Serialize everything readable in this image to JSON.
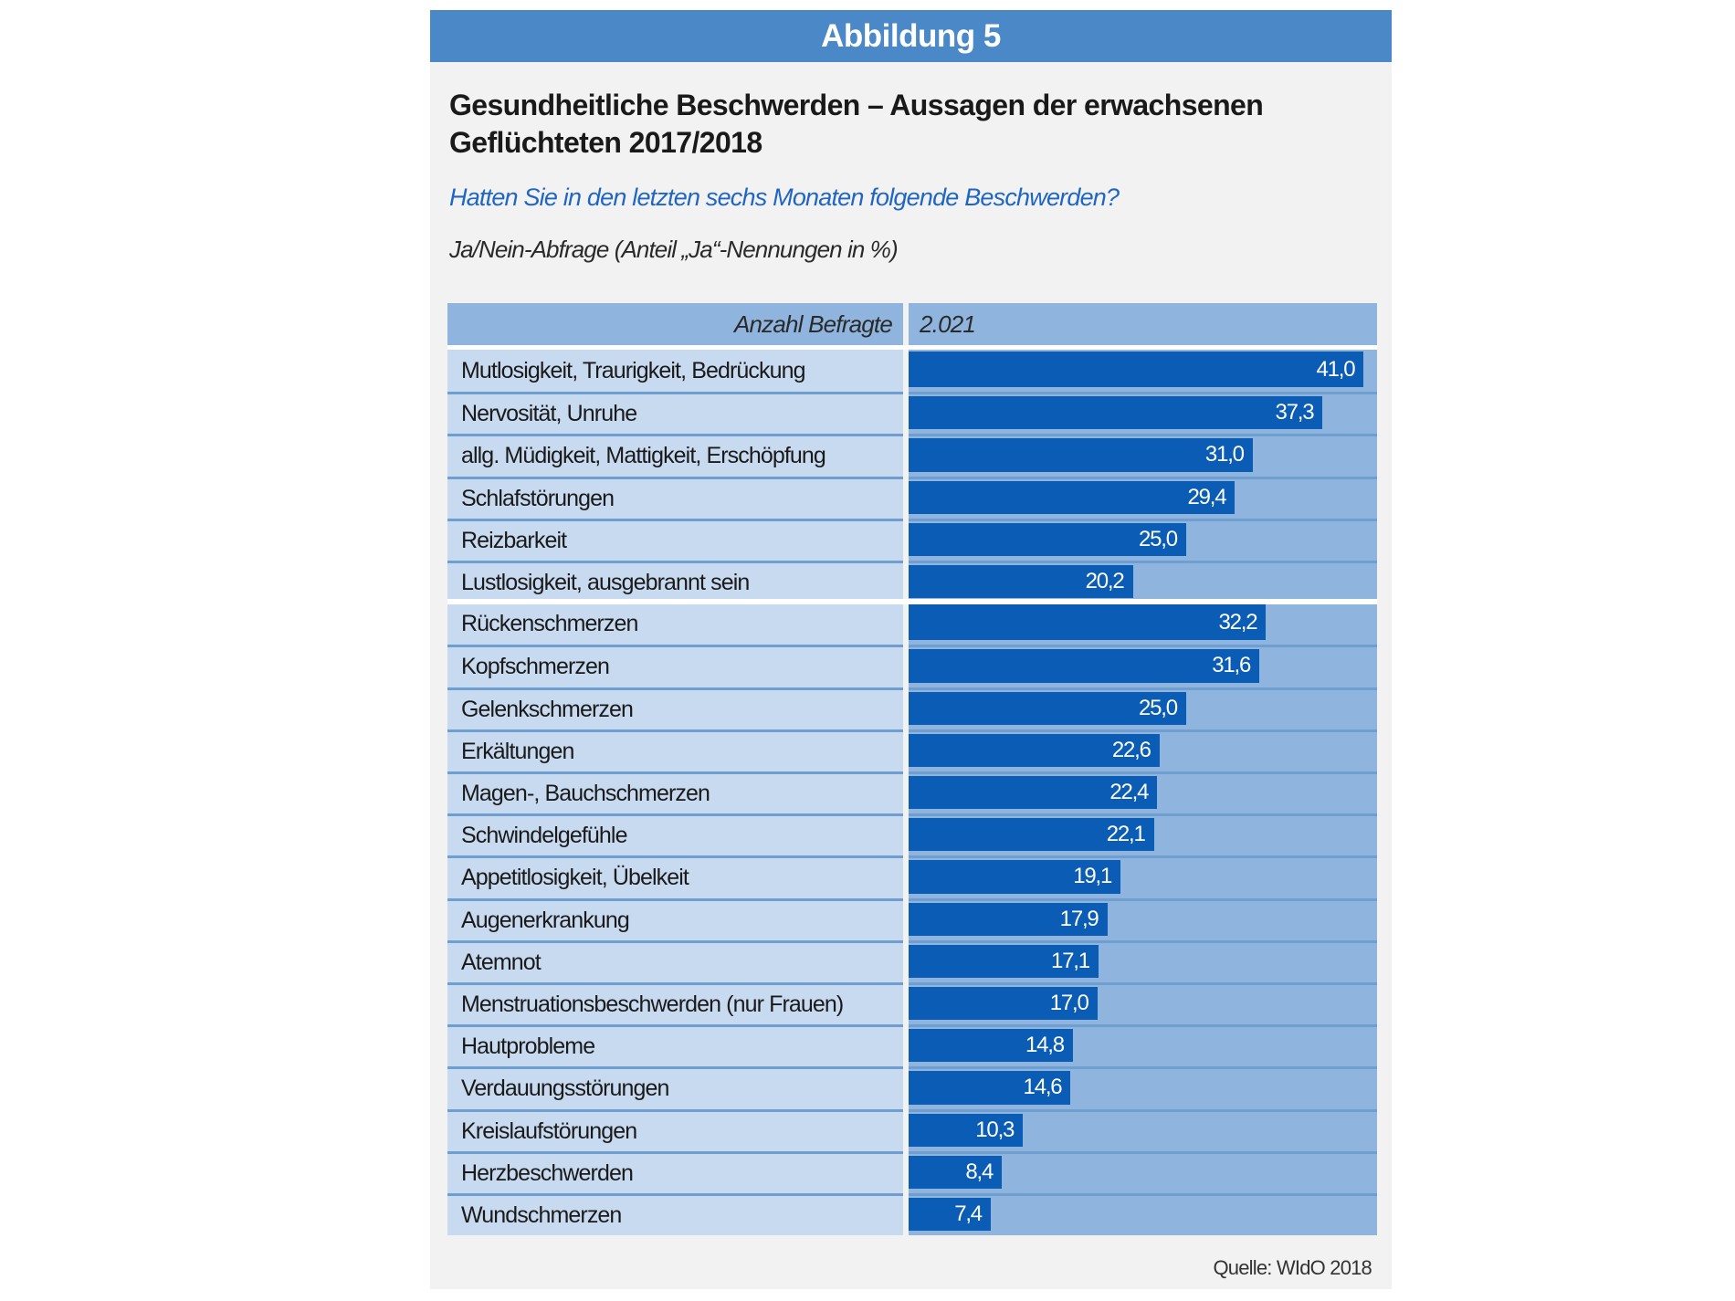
{
  "figure": {
    "header": "Abbildung 5",
    "title_line1": "Gesundheitliche Beschwerden – Aussagen der erwachsenen",
    "title_line2": "Geflüchteten 2017/2018",
    "question": "Hatten Sie in den letzten sechs Monaten folgende Beschwerden?",
    "note": "Ja/Nein-Abfrage (Anteil „Ja“-Nennungen in %)",
    "respondents_label": "Anzahl Befragte",
    "respondents_value": "2.021",
    "source": "Quelle: WIdO 2018"
  },
  "colors": {
    "header_bg": "#4a88c8",
    "bar": "#0a5cb4",
    "track": "#8fb4de",
    "label_bg": "#c8daf0",
    "question_text": "#1f66c4"
  },
  "chart_data": {
    "type": "bar",
    "orientation": "horizontal",
    "title": "Gesundheitliche Beschwerden – Aussagen der erwachsenen Geflüchteten 2017/2018",
    "subtitle": "Hatten Sie in den letzten sechs Monaten folgende Beschwerden?",
    "xlabel": "Anteil „Ja“-Nennungen in %",
    "ylabel": "",
    "xlim": [
      0,
      42.2
    ],
    "grid": false,
    "legend": "none",
    "groups": [
      {
        "categories": [
          "Mutlosigkeit, Traurigkeit, Bedrückung",
          "Nervosität, Unruhe",
          "allg. Müdigkeit, Mattigkeit, Erschöpfung",
          "Schlafstörungen",
          "Reizbarkeit",
          "Lustlosigkeit, ausgebrannt sein"
        ],
        "values": [
          41.0,
          37.3,
          31.0,
          29.4,
          25.0,
          20.2
        ],
        "labels": [
          "41,0",
          "37,3",
          "31,0",
          "29,4",
          "25,0",
          "20,2"
        ]
      },
      {
        "categories": [
          "Rückenschmerzen",
          "Kopfschmerzen",
          "Gelenkschmerzen",
          "Erkältungen",
          "Magen-, Bauchschmerzen",
          "Schwindelgefühle",
          "Appetitlosigkeit, Übelkeit",
          "Augenerkrankung",
          "Atemnot",
          "Menstruationsbeschwerden (nur Frauen)",
          "Hautprobleme",
          "Verdauungsstörungen",
          "Kreislaufstörungen",
          "Herzbeschwerden",
          "Wundschmerzen"
        ],
        "values": [
          32.2,
          31.6,
          25.0,
          22.6,
          22.4,
          22.1,
          19.1,
          17.9,
          17.1,
          17.0,
          14.8,
          14.6,
          10.3,
          8.4,
          7.4
        ],
        "labels": [
          "32,2",
          "31,6",
          "25,0",
          "22,6",
          "22,4",
          "22,1",
          "19,1",
          "17,9",
          "17,1",
          "17,0",
          "14,8",
          "14,6",
          "10,3",
          "8,4",
          "7,4"
        ]
      }
    ]
  }
}
